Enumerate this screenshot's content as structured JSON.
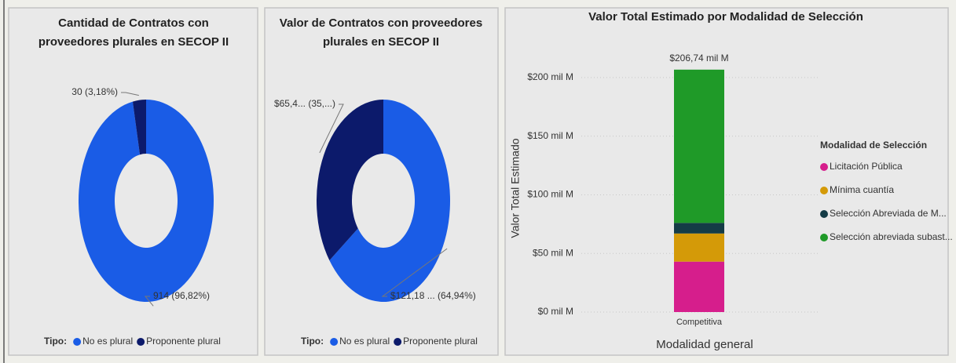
{
  "chart_data": [
    {
      "type": "donut",
      "title": "Cantidad de Contratos con proveedores plurales en SECOP II",
      "categories": [
        "No es plural",
        "Proponente plural"
      ],
      "values": [
        914,
        30
      ],
      "value_labels": [
        "914 (96,82%)",
        "30 (3,18%)"
      ],
      "colors": [
        "#1a5ce6",
        "#0c1a6b"
      ],
      "legend_title": "Tipo:"
    },
    {
      "type": "donut",
      "title": "Valor de Contratos con proveedores plurales en SECOP II",
      "categories": [
        "No es plural",
        "Proponente plural"
      ],
      "values": [
        121.18,
        65.4
      ],
      "value_labels": [
        "$121,18 ... (64,94%)",
        "$65,4... (35,...)"
      ],
      "colors": [
        "#1a5ce6",
        "#0c1a6b"
      ],
      "legend_title": "Tipo:"
    },
    {
      "type": "stacked_bar",
      "title": "Valor Total Estimado por Modalidad de Selección",
      "categories": [
        "Competitiva"
      ],
      "xlabel": "Modalidad general",
      "ylabel": "Valor Total Estimado",
      "legend_title": "Modalidad de Selección",
      "annotation": "$206,74 mil M",
      "series": [
        {
          "name": "Licitación Pública",
          "color": "#d61e8c",
          "values": [
            43
          ]
        },
        {
          "name": "Mínima cuantía",
          "color": "#d49a08",
          "values": [
            24
          ]
        },
        {
          "name": "Selección Abreviada de M...",
          "color": "#143c46",
          "values": [
            9
          ]
        },
        {
          "name": "Selección abreviada subast...",
          "color": "#1f9a28",
          "values": [
            130.74
          ]
        }
      ],
      "ylim": [
        0,
        220
      ],
      "yticks": [
        {
          "value": 0,
          "label": "$0 mil M"
        },
        {
          "value": 50,
          "label": "$50 mil M"
        },
        {
          "value": 100,
          "label": "$100 mil M"
        },
        {
          "value": 150,
          "label": "$150 mil M"
        },
        {
          "value": 200,
          "label": "$200 mil M"
        }
      ],
      "grid": true
    }
  ]
}
